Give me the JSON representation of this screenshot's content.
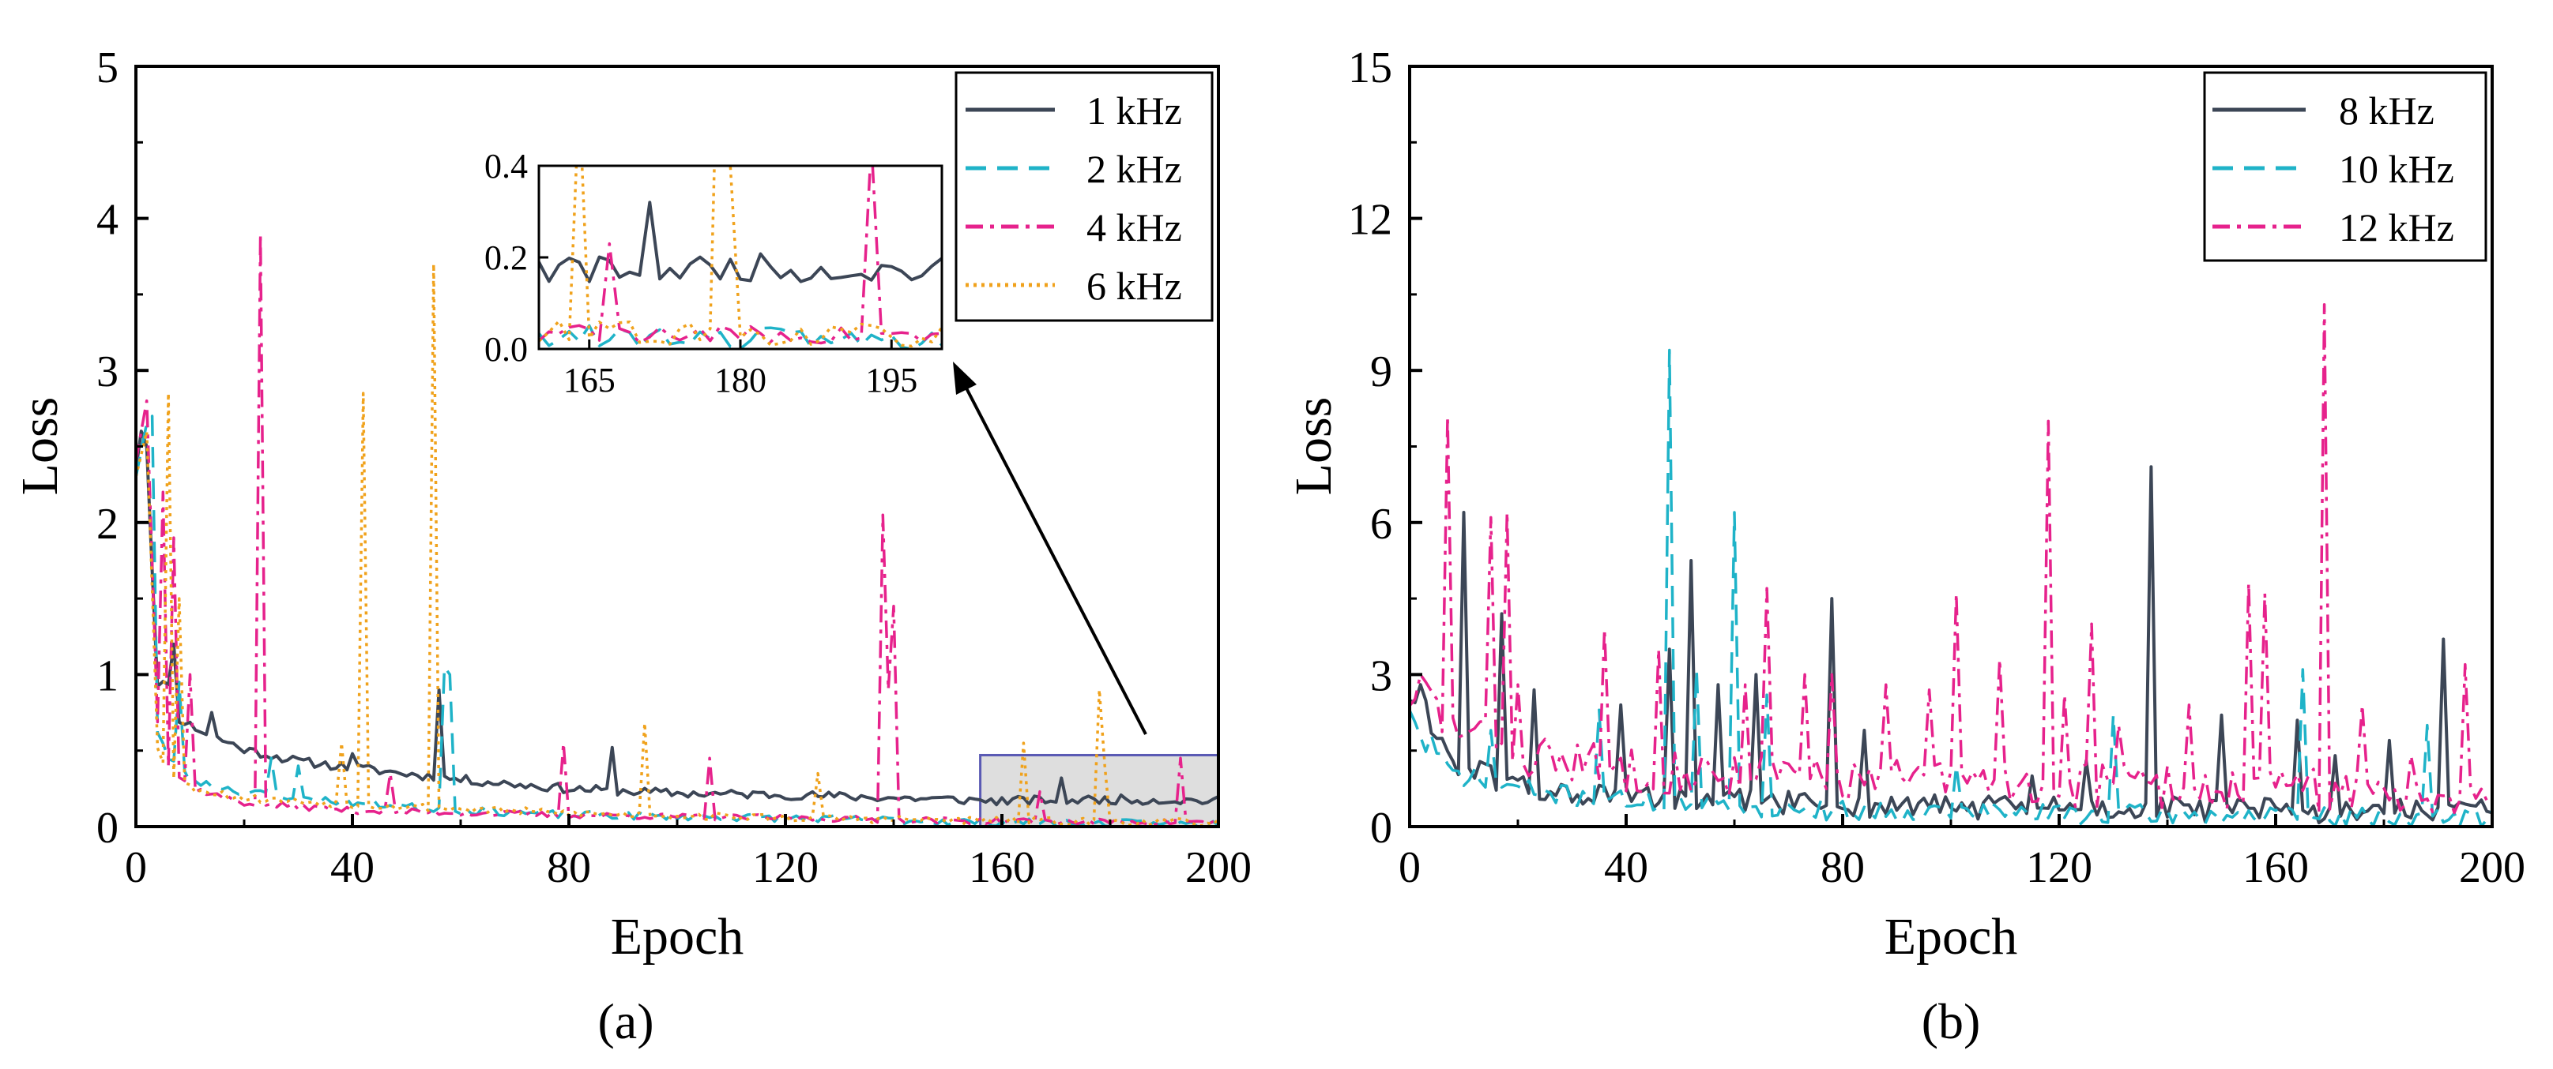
{
  "figure": {
    "panel_a_label": "(a)",
    "panel_b_label": "(b)"
  },
  "colors": {
    "s1": "#3c4656",
    "s2": "#1fb3c8",
    "s4": "#e6228c",
    "s6": "#f0a21c",
    "zoom_fill": "#d8d8d8",
    "zoom_stroke": "#5a5ab4"
  },
  "chart_data": [
    {
      "id": "a",
      "type": "line",
      "title": "",
      "xlabel": "Epoch",
      "ylabel": "Loss",
      "xlim": [
        0,
        200
      ],
      "ylim": [
        0,
        5
      ],
      "xticks": [
        0,
        40,
        80,
        120,
        160,
        200
      ],
      "yticks": [
        0,
        1,
        2,
        3,
        4,
        5
      ],
      "legend_position": "top-right",
      "series": [
        {
          "name": "1 kHz",
          "style": "solid",
          "color_key": "s1",
          "base": [
            [
              0,
              2.35
            ],
            [
              2,
              2.5
            ],
            [
              4,
              0.9
            ],
            [
              6,
              0.95
            ],
            [
              8,
              0.7
            ],
            [
              12,
              0.62
            ],
            [
              20,
              0.5
            ],
            [
              30,
              0.42
            ],
            [
              40,
              0.38
            ],
            [
              52,
              0.33
            ],
            [
              60,
              0.3
            ],
            [
              80,
              0.24
            ],
            [
              100,
              0.21
            ],
            [
              120,
              0.2
            ],
            [
              140,
              0.18
            ],
            [
              160,
              0.16
            ],
            [
              180,
              0.17
            ],
            [
              200,
              0.16
            ]
          ],
          "noise": 0.06,
          "seed": 11,
          "peaks": [
            [
              1,
              2.6
            ],
            [
              7,
              1.2
            ],
            [
              14,
              0.75
            ],
            [
              40,
              0.48
            ],
            [
              56,
              0.9
            ],
            [
              88,
              0.52
            ],
            [
              171,
              0.32
            ]
          ]
        },
        {
          "name": "2 kHz",
          "style": "dashed",
          "color_key": "s2",
          "base": [
            [
              0,
              2.3
            ],
            [
              2,
              2.65
            ],
            [
              4,
              0.6
            ],
            [
              6,
              0.45
            ],
            [
              10,
              0.3
            ],
            [
              20,
              0.22
            ],
            [
              40,
              0.15
            ],
            [
              60,
              0.1
            ],
            [
              80,
              0.07
            ],
            [
              120,
              0.05
            ],
            [
              160,
              0.02
            ],
            [
              200,
              0.01
            ]
          ],
          "noise": 0.05,
          "seed": 23,
          "peaks": [
            [
              3,
              2.7
            ],
            [
              8,
              0.95
            ],
            [
              57,
              1.05
            ],
            [
              58,
              1.0
            ],
            [
              25,
              0.45
            ],
            [
              30,
              0.4
            ]
          ]
        },
        {
          "name": "4 kHz",
          "style": "dashdot",
          "color_key": "s4",
          "base": [
            [
              0,
              2.4
            ],
            [
              2,
              2.8
            ],
            [
              4,
              0.7
            ],
            [
              6,
              0.4
            ],
            [
              10,
              0.25
            ],
            [
              20,
              0.15
            ],
            [
              40,
              0.1
            ],
            [
              80,
              0.07
            ],
            [
              120,
              0.05
            ],
            [
              160,
              0.03
            ],
            [
              200,
              0.02
            ]
          ],
          "noise": 0.04,
          "seed": 37,
          "peaks": [
            [
              2,
              2.8
            ],
            [
              5,
              2.2
            ],
            [
              7,
              1.9
            ],
            [
              10,
              1.0
            ],
            [
              23,
              3.9
            ],
            [
              47,
              0.35
            ],
            [
              79,
              0.55
            ],
            [
              106,
              0.45
            ],
            [
              138,
              2.05
            ],
            [
              139,
              0.9
            ],
            [
              140,
              1.45
            ],
            [
              167,
              0.23
            ],
            [
              193,
              0.45
            ]
          ]
        },
        {
          "name": "6 kHz",
          "style": "dotted",
          "color_key": "s6",
          "base": [
            [
              0,
              2.3
            ],
            [
              2,
              2.6
            ],
            [
              4,
              0.5
            ],
            [
              6,
              0.35
            ],
            [
              10,
              0.25
            ],
            [
              20,
              0.18
            ],
            [
              40,
              0.14
            ],
            [
              80,
              0.08
            ],
            [
              120,
              0.05
            ],
            [
              160,
              0.03
            ],
            [
              200,
              0.02
            ]
          ],
          "noise": 0.05,
          "seed": 53,
          "peaks": [
            [
              6,
              2.85
            ],
            [
              8,
              1.5
            ],
            [
              42,
              2.85
            ],
            [
              38,
              0.55
            ],
            [
              55,
              3.7
            ],
            [
              94,
              0.68
            ],
            [
              126,
              0.35
            ],
            [
              164,
              0.55
            ],
            [
              178,
              0.9
            ],
            [
              179,
              0.4
            ]
          ]
        }
      ],
      "zoom_box": {
        "x": [
          156,
          200
        ],
        "y": [
          0,
          0.47
        ]
      },
      "inset": {
        "xlim": [
          160,
          200
        ],
        "ylim": [
          0,
          0.4
        ],
        "xticks": [
          165,
          180,
          195
        ],
        "xtick_labels": [
          "165",
          "180",
          "195"
        ],
        "yticks": [
          0,
          0.2,
          0.4
        ],
        "ytick_labels": [
          "0.0",
          "0.2",
          "0.4"
        ]
      }
    },
    {
      "id": "b",
      "type": "line",
      "title": "",
      "xlabel": "Epoch",
      "ylabel": "Loss",
      "xlim": [
        0,
        200
      ],
      "ylim": [
        0,
        15
      ],
      "xticks": [
        0,
        40,
        80,
        120,
        160,
        200
      ],
      "yticks": [
        0,
        3,
        6,
        9,
        12,
        15
      ],
      "legend_position": "top-right",
      "series": [
        {
          "name": "8 kHz",
          "style": "solid",
          "color_key": "s1",
          "base": [
            [
              0,
              2.5
            ],
            [
              3,
              2.2
            ],
            [
              8,
              1.2
            ],
            [
              15,
              0.9
            ],
            [
              25,
              0.6
            ],
            [
              40,
              0.5
            ],
            [
              60,
              0.45
            ],
            [
              80,
              0.35
            ],
            [
              120,
              0.3
            ],
            [
              160,
              0.25
            ],
            [
              200,
              0.2
            ]
          ],
          "noise": 0.5,
          "seed": 61,
          "peaks": [
            [
              2,
              2.8
            ],
            [
              10,
              6.2
            ],
            [
              17,
              4.2
            ],
            [
              23,
              2.7
            ],
            [
              39,
              2.4
            ],
            [
              48,
              3.5
            ],
            [
              52,
              5.25
            ],
            [
              57,
              2.8
            ],
            [
              64,
              3.0
            ],
            [
              78,
              4.5
            ],
            [
              84,
              1.9
            ],
            [
              115,
              1.0
            ],
            [
              125,
              1.3
            ],
            [
              137,
              7.1
            ],
            [
              150,
              2.2
            ],
            [
              164,
              2.1
            ],
            [
              171,
              1.4
            ],
            [
              181,
              1.7
            ],
            [
              191,
              3.7
            ]
          ]
        },
        {
          "name": "10 kHz",
          "style": "dashed",
          "color_key": "s2",
          "base": [
            [
              0,
              2.3
            ],
            [
              3,
              1.5
            ],
            [
              8,
              1.0
            ],
            [
              15,
              0.8
            ],
            [
              25,
              0.6
            ],
            [
              40,
              0.45
            ],
            [
              60,
              0.35
            ],
            [
              80,
              0.25
            ],
            [
              120,
              0.2
            ],
            [
              160,
              0.15
            ],
            [
              200,
              0.1
            ]
          ],
          "noise": 0.4,
          "seed": 71,
          "peaks": [
            [
              4,
              1.8
            ],
            [
              15,
              1.9
            ],
            [
              35,
              2.3
            ],
            [
              48,
              9.4
            ],
            [
              53,
              3.1
            ],
            [
              60,
              6.2
            ],
            [
              66,
              2.6
            ],
            [
              101,
              1.2
            ],
            [
              130,
              2.2
            ],
            [
              165,
              3.1
            ],
            [
              188,
              2.0
            ]
          ]
        },
        {
          "name": "12 kHz",
          "style": "dashdot",
          "color_key": "s4",
          "base": [
            [
              0,
              2.4
            ],
            [
              3,
              2.5
            ],
            [
              8,
              1.8
            ],
            [
              15,
              1.5
            ],
            [
              25,
              1.2
            ],
            [
              40,
              1.0
            ],
            [
              60,
              0.9
            ],
            [
              80,
              0.8
            ],
            [
              120,
              0.7
            ],
            [
              160,
              0.6
            ],
            [
              200,
              0.5
            ]
          ],
          "noise": 0.9,
          "seed": 83,
          "peaks": [
            [
              2,
              3.0
            ],
            [
              7,
              8.1
            ],
            [
              15,
              6.1
            ],
            [
              18,
              6.2
            ],
            [
              20,
              2.8
            ],
            [
              36,
              3.9
            ],
            [
              46,
              3.5
            ],
            [
              62,
              2.8
            ],
            [
              66,
              4.7
            ],
            [
              73,
              3.0
            ],
            [
              78,
              3.0
            ],
            [
              88,
              2.8
            ],
            [
              96,
              2.7
            ],
            [
              101,
              4.6
            ],
            [
              109,
              3.3
            ],
            [
              118,
              8.0
            ],
            [
              121,
              2.6
            ],
            [
              126,
              4.0
            ],
            [
              131,
              2.0
            ],
            [
              144,
              2.4
            ],
            [
              155,
              4.8
            ],
            [
              158,
              4.6
            ],
            [
              169,
              10.3
            ],
            [
              176,
              2.4
            ],
            [
              185,
              1.4
            ],
            [
              195,
              3.2
            ]
          ]
        }
      ]
    }
  ]
}
